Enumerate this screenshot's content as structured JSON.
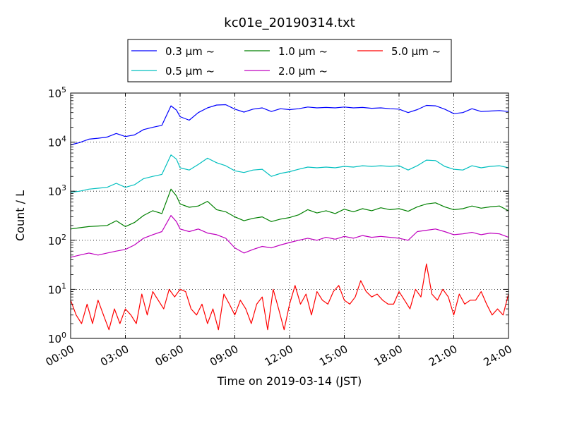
{
  "chart_data": {
    "type": "line",
    "title": "kc01e_20190314.txt",
    "xlabel": "Time on 2019-03-14 (JST)",
    "ylabel": "Count / L",
    "yscale": "log",
    "ylim": [
      1,
      100000
    ],
    "xlim_hours": [
      0,
      24
    ],
    "x_ticks": [
      0,
      3,
      6,
      9,
      12,
      15,
      18,
      21,
      24
    ],
    "x_tick_labels": [
      "00:00",
      "03:00",
      "06:00",
      "09:00",
      "12:00",
      "15:00",
      "18:00",
      "21:00",
      "24:00"
    ],
    "y_ticks": [
      1,
      10,
      100,
      1000,
      10000,
      100000
    ],
    "y_tick_labels": [
      {
        "base": "10",
        "exp": "0"
      },
      {
        "base": "10",
        "exp": "1"
      },
      {
        "base": "10",
        "exp": "2"
      },
      {
        "base": "10",
        "exp": "3"
      },
      {
        "base": "10",
        "exp": "4"
      },
      {
        "base": "10",
        "exp": "5"
      }
    ],
    "grid": true,
    "legend_position": "top-center",
    "series": [
      {
        "name": "0.3 µm ~",
        "color": "#0000ff",
        "x": [
          0,
          0.5,
          1,
          1.5,
          2,
          2.5,
          3,
          3.5,
          4,
          4.5,
          5,
          5.5,
          5.8,
          6,
          6.5,
          7,
          7.5,
          8,
          8.5,
          9,
          9.5,
          10,
          10.5,
          11,
          11.5,
          12,
          12.5,
          13,
          13.5,
          14,
          14.5,
          15,
          15.5,
          16,
          16.5,
          17,
          17.5,
          18,
          18.5,
          19,
          19.5,
          20,
          20.5,
          21,
          21.5,
          22,
          22.5,
          23,
          23.5,
          24
        ],
        "values": [
          8800,
          9800,
          11500,
          12000,
          12700,
          15000,
          13000,
          14000,
          18000,
          20000,
          22000,
          55000,
          45000,
          33000,
          28000,
          40000,
          50000,
          57000,
          58000,
          47000,
          41000,
          47000,
          50000,
          42000,
          48000,
          46000,
          48000,
          52000,
          50000,
          51000,
          50000,
          52000,
          50000,
          51000,
          49000,
          50000,
          48000,
          47000,
          40000,
          46000,
          56000,
          55000,
          47000,
          38000,
          40000,
          48000,
          42000,
          43000,
          44000,
          42000
        ]
      },
      {
        "name": "0.5 µm ~",
        "color": "#00bfbf",
        "x": [
          0,
          0.5,
          1,
          1.5,
          2,
          2.5,
          3,
          3.5,
          4,
          4.5,
          5,
          5.5,
          5.8,
          6,
          6.5,
          7,
          7.5,
          8,
          8.5,
          9,
          9.5,
          10,
          10.5,
          11,
          11.5,
          12,
          12.5,
          13,
          13.5,
          14,
          14.5,
          15,
          15.5,
          16,
          16.5,
          17,
          17.5,
          18,
          18.5,
          19,
          19.5,
          20,
          20.5,
          21,
          21.5,
          22,
          22.5,
          23,
          23.5,
          24
        ],
        "values": [
          950,
          1000,
          1100,
          1150,
          1200,
          1450,
          1200,
          1350,
          1800,
          2000,
          2200,
          5500,
          4500,
          3000,
          2700,
          3500,
          4700,
          3800,
          3300,
          2600,
          2400,
          2700,
          2800,
          2000,
          2300,
          2500,
          2800,
          3100,
          3000,
          3100,
          3000,
          3200,
          3100,
          3300,
          3200,
          3300,
          3200,
          3300,
          2700,
          3300,
          4300,
          4200,
          3200,
          2800,
          2700,
          3300,
          3000,
          3200,
          3300,
          3000
        ]
      },
      {
        "name": "1.0 µm ~",
        "color": "#008000",
        "x": [
          0,
          0.5,
          1,
          1.5,
          2,
          2.5,
          3,
          3.5,
          4,
          4.5,
          5,
          5.5,
          5.8,
          6,
          6.5,
          7,
          7.5,
          8,
          8.5,
          9,
          9.5,
          10,
          10.5,
          11,
          11.5,
          12,
          12.5,
          13,
          13.5,
          14,
          14.5,
          15,
          15.5,
          16,
          16.5,
          17,
          17.5,
          18,
          18.5,
          19,
          19.5,
          20,
          20.5,
          21,
          21.5,
          22,
          22.5,
          23,
          23.5,
          24
        ],
        "values": [
          170,
          180,
          190,
          195,
          200,
          250,
          190,
          230,
          320,
          400,
          350,
          1100,
          800,
          550,
          470,
          500,
          620,
          420,
          380,
          300,
          250,
          280,
          300,
          240,
          270,
          290,
          330,
          420,
          360,
          400,
          350,
          430,
          380,
          440,
          400,
          460,
          420,
          440,
          390,
          480,
          550,
          580,
          480,
          420,
          440,
          500,
          450,
          480,
          500,
          400
        ]
      },
      {
        "name": "2.0 µm ~",
        "color": "#bf00bf",
        "x": [
          0,
          0.5,
          1,
          1.5,
          2,
          2.5,
          3,
          3.5,
          4,
          4.5,
          5,
          5.5,
          5.8,
          6,
          6.5,
          7,
          7.5,
          8,
          8.5,
          9,
          9.5,
          10,
          10.5,
          11,
          11.5,
          12,
          12.5,
          13,
          13.5,
          14,
          14.5,
          15,
          15.5,
          16,
          16.5,
          17,
          17.5,
          18,
          18.5,
          19,
          19.5,
          20,
          20.5,
          21,
          21.5,
          22,
          22.5,
          23,
          23.5,
          24
        ],
        "values": [
          45,
          50,
          55,
          50,
          55,
          60,
          65,
          80,
          110,
          130,
          150,
          320,
          240,
          170,
          150,
          170,
          140,
          130,
          110,
          70,
          55,
          65,
          75,
          70,
          80,
          90,
          100,
          110,
          100,
          115,
          105,
          120,
          110,
          125,
          115,
          120,
          115,
          110,
          100,
          150,
          160,
          170,
          150,
          130,
          135,
          145,
          130,
          140,
          135,
          115
        ]
      },
      {
        "name": "5.0 µm ~",
        "color": "#ff0000",
        "x": [
          0,
          0.3,
          0.6,
          0.9,
          1.2,
          1.5,
          1.8,
          2.1,
          2.4,
          2.7,
          3,
          3.3,
          3.6,
          3.9,
          4.2,
          4.5,
          4.8,
          5.1,
          5.4,
          5.7,
          6,
          6.3,
          6.6,
          6.9,
          7.2,
          7.5,
          7.8,
          8.1,
          8.4,
          8.7,
          9,
          9.3,
          9.6,
          9.9,
          10.2,
          10.5,
          10.8,
          11.1,
          11.4,
          11.7,
          12,
          12.3,
          12.6,
          12.9,
          13.2,
          13.5,
          13.8,
          14.1,
          14.4,
          14.7,
          15,
          15.3,
          15.6,
          15.9,
          16.2,
          16.5,
          16.8,
          17.1,
          17.4,
          17.7,
          18,
          18.3,
          18.6,
          18.9,
          19.2,
          19.5,
          19.8,
          20.1,
          20.4,
          20.7,
          21,
          21.3,
          21.6,
          21.9,
          22.2,
          22.5,
          22.8,
          23.1,
          23.4,
          23.7,
          24
        ],
        "values": [
          6,
          3,
          2,
          5,
          2,
          6,
          3,
          1.5,
          4,
          2,
          4,
          3,
          2,
          8,
          3,
          9,
          6,
          4,
          10,
          7,
          10,
          9,
          4,
          3,
          5,
          2,
          4,
          1.5,
          8,
          5,
          3,
          6,
          4,
          2,
          5,
          7,
          1.5,
          10,
          4,
          1.5,
          5,
          12,
          5,
          8,
          3,
          9,
          6,
          5,
          9,
          12,
          6,
          5,
          7,
          15,
          9,
          7,
          8,
          6,
          5,
          5,
          9,
          6,
          4,
          10,
          7,
          33,
          8,
          6,
          10,
          7,
          3,
          8,
          5,
          6,
          6,
          9,
          5,
          3,
          4,
          3,
          8
        ]
      }
    ]
  }
}
